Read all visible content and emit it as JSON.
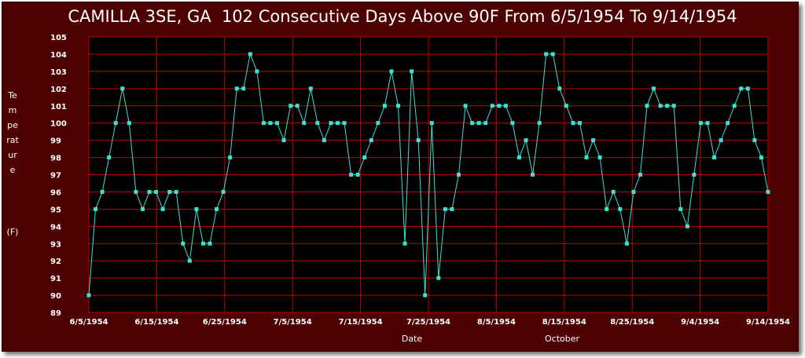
{
  "chart_data": {
    "type": "line",
    "title": "CAMILLA 3SE, GA  102 Consecutive Days Above 90F From 6/5/1954 To 9/14/1954",
    "ylabel": "Temperature",
    "yunit": "(F)",
    "xlabel": "Date",
    "xnote": "October",
    "ylim": [
      89,
      105
    ],
    "grid": true,
    "x_ticks": [
      "6/5/1954",
      "6/15/1954",
      "6/25/1954",
      "7/5/1954",
      "7/15/1954",
      "7/25/1954",
      "8/5/1954",
      "8/15/1954",
      "8/25/1954",
      "9/4/1954",
      "9/14/1954"
    ],
    "y_ticks": [
      89,
      90,
      91,
      92,
      93,
      94,
      95,
      96,
      97,
      98,
      99,
      100,
      101,
      102,
      103,
      104,
      105
    ],
    "series": [
      {
        "values": [
          90,
          95,
          96,
          98,
          100,
          102,
          100,
          96,
          95,
          96,
          96,
          95,
          96,
          96,
          93,
          92,
          95,
          93,
          93,
          95,
          96,
          98,
          102,
          102,
          104,
          103,
          100,
          100,
          100,
          99,
          101,
          101,
          100,
          102,
          100,
          99,
          100,
          100,
          100,
          97,
          97,
          98,
          99,
          100,
          101,
          103,
          101,
          93,
          103,
          99,
          90,
          100,
          91,
          95,
          95,
          97,
          101,
          100,
          100,
          100,
          101,
          101,
          101,
          100,
          98,
          99,
          97,
          100,
          104,
          104,
          102,
          101,
          100,
          100,
          98,
          99,
          98,
          95,
          96,
          95,
          93,
          96,
          97,
          101,
          102,
          101,
          101,
          101,
          95,
          94,
          97,
          100,
          100,
          98,
          99,
          100,
          101,
          102,
          102,
          99,
          98,
          96
        ]
      }
    ]
  },
  "colors": {
    "frame": "#4d0000",
    "plot_bg": "#000000",
    "grid": "#c00000",
    "line": "#40e0d0",
    "marker": "#40e0d0",
    "text": "#ffffff"
  }
}
